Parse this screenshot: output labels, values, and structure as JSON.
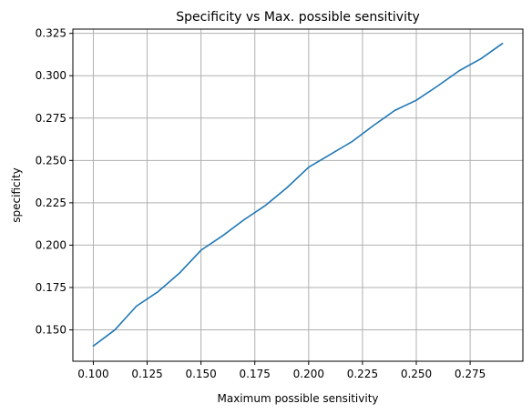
{
  "chart_data": {
    "type": "line",
    "title": "Specificity vs Max. possible sensitivity",
    "xlabel": "Maximum possible sensitivity",
    "ylabel": "specificity",
    "xlim": [
      0.0905,
      0.2995
    ],
    "ylim": [
      0.1315,
      0.3275
    ],
    "xticks": [
      0.1,
      0.125,
      0.15,
      0.175,
      0.2,
      0.225,
      0.25,
      0.275
    ],
    "xtick_labels": [
      "0.100",
      "0.125",
      "0.150",
      "0.175",
      "0.200",
      "0.225",
      "0.250",
      "0.275"
    ],
    "yticks": [
      0.15,
      0.175,
      0.2,
      0.225,
      0.25,
      0.275,
      0.3,
      0.325
    ],
    "ytick_labels": [
      "0.150",
      "0.175",
      "0.200",
      "0.225",
      "0.250",
      "0.275",
      "0.300",
      "0.325"
    ],
    "grid": true,
    "line_color": "#1f77b4",
    "grid_color": "#b0b0b0",
    "series": [
      {
        "x": [
          0.1,
          0.11,
          0.12,
          0.13,
          0.14,
          0.15,
          0.16,
          0.17,
          0.18,
          0.19,
          0.2,
          0.21,
          0.22,
          0.23,
          0.24,
          0.25,
          0.26,
          0.27,
          0.28,
          0.29
        ],
        "y": [
          0.1405,
          0.15,
          0.164,
          0.1725,
          0.1835,
          0.197,
          0.2055,
          0.215,
          0.2235,
          0.234,
          0.246,
          0.2535,
          0.261,
          0.2705,
          0.2795,
          0.2855,
          0.294,
          0.303,
          0.31,
          0.319
        ]
      }
    ]
  }
}
